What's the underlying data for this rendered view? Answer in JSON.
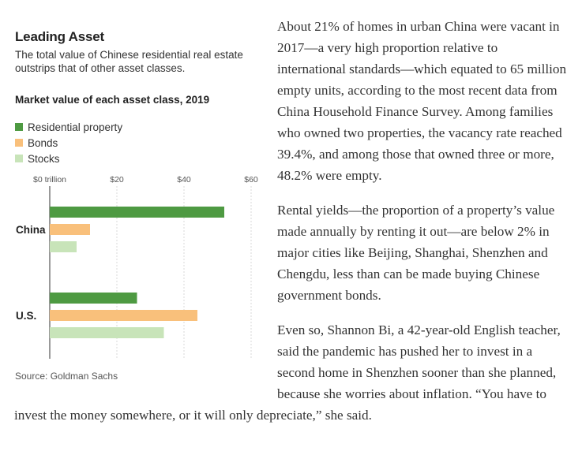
{
  "chart_data": {
    "type": "bar",
    "title": "Leading Asset",
    "subtitle": "The total value of Chinese residential real estate outstrips that of other asset classes.",
    "heading": "Market value of each asset class, 2019",
    "categories": [
      "China",
      "U.S."
    ],
    "series": [
      {
        "name": "Residential property",
        "color": "#4e9a42",
        "values": [
          52,
          26
        ]
      },
      {
        "name": "Bonds",
        "color": "#f9c07b",
        "values": [
          12,
          44
        ]
      },
      {
        "name": "Stocks",
        "color": "#c8e4b9",
        "values": [
          8,
          34
        ]
      }
    ],
    "x_ticks": [
      "$0 trillion",
      "$20",
      "$40",
      "$60"
    ],
    "xlim": [
      0,
      60
    ],
    "grid": true,
    "legend": "top-left",
    "source": "Source: Goldman Sachs"
  },
  "article": {
    "paragraphs": [
      "About 21% of homes in urban China were vacant in 2017—a very high proportion relative to international standards—which equated to 65 million empty units, according to the most recent data from China Household Finance Survey. Among families who owned two properties, the vacancy rate reached 39.4%, and among those that owned three or more, 48.2% were empty.",
      "Rental yields—the proportion of a property’s value made annually by renting it out—are below 2% in major cities like Beijing, Shanghai, Shenzhen and Chengdu, less than can be made buying Chinese government bonds.",
      "Even so, Shannon Bi, a 42-year-old English teacher, said the pandemic has pushed her to invest in a second home in Shenzhen sooner than she planned, because she worries about inflation. “You have to invest the money somewhere, or it will only depreciate,” she said."
    ]
  }
}
